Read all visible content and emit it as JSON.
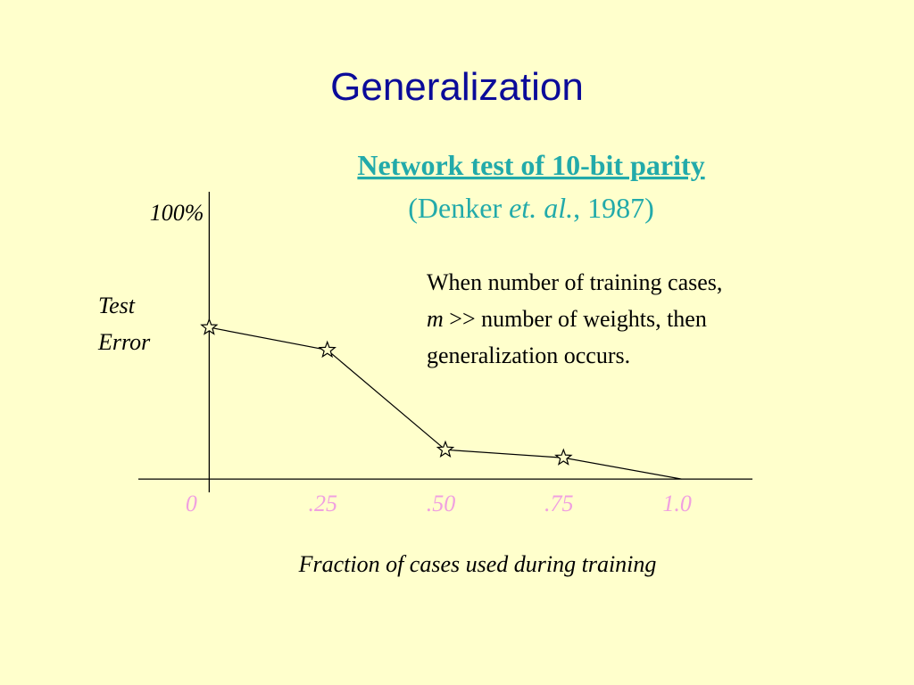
{
  "slide": {
    "title": "Generalization"
  },
  "chart_data": {
    "type": "line",
    "title": "Network test of 10-bit parity",
    "subtitle": [
      "(Denker ",
      "et. al.",
      ", 1987)"
    ],
    "y_label": [
      "Test",
      "Error"
    ],
    "x_label": "Fraction of cases used during training",
    "annotation": {
      "line1": "When number of training cases,",
      "line2_italic": "m",
      "line2": " >> number of weights, then",
      "line3": "generalization occurs."
    },
    "x": [
      0,
      0.25,
      0.5,
      0.75,
      1
    ],
    "values": [
      57,
      48.5,
      11,
      8,
      0
    ],
    "color": "#000000",
    "xlim": [
      -0.15,
      1.15
    ],
    "xticks": [
      0,
      {
        "value": 0.25,
        "label": ".25"
      },
      {
        "value": 0.5,
        "label": ".50"
      },
      {
        "value": 0.75,
        "label": ".75"
      },
      {
        "value": 1,
        "label": "1.0"
      }
    ],
    "ylim": [
      -5,
      108
    ],
    "yticks": [
      {
        "value": 100,
        "label": "100%"
      }
    ]
  }
}
